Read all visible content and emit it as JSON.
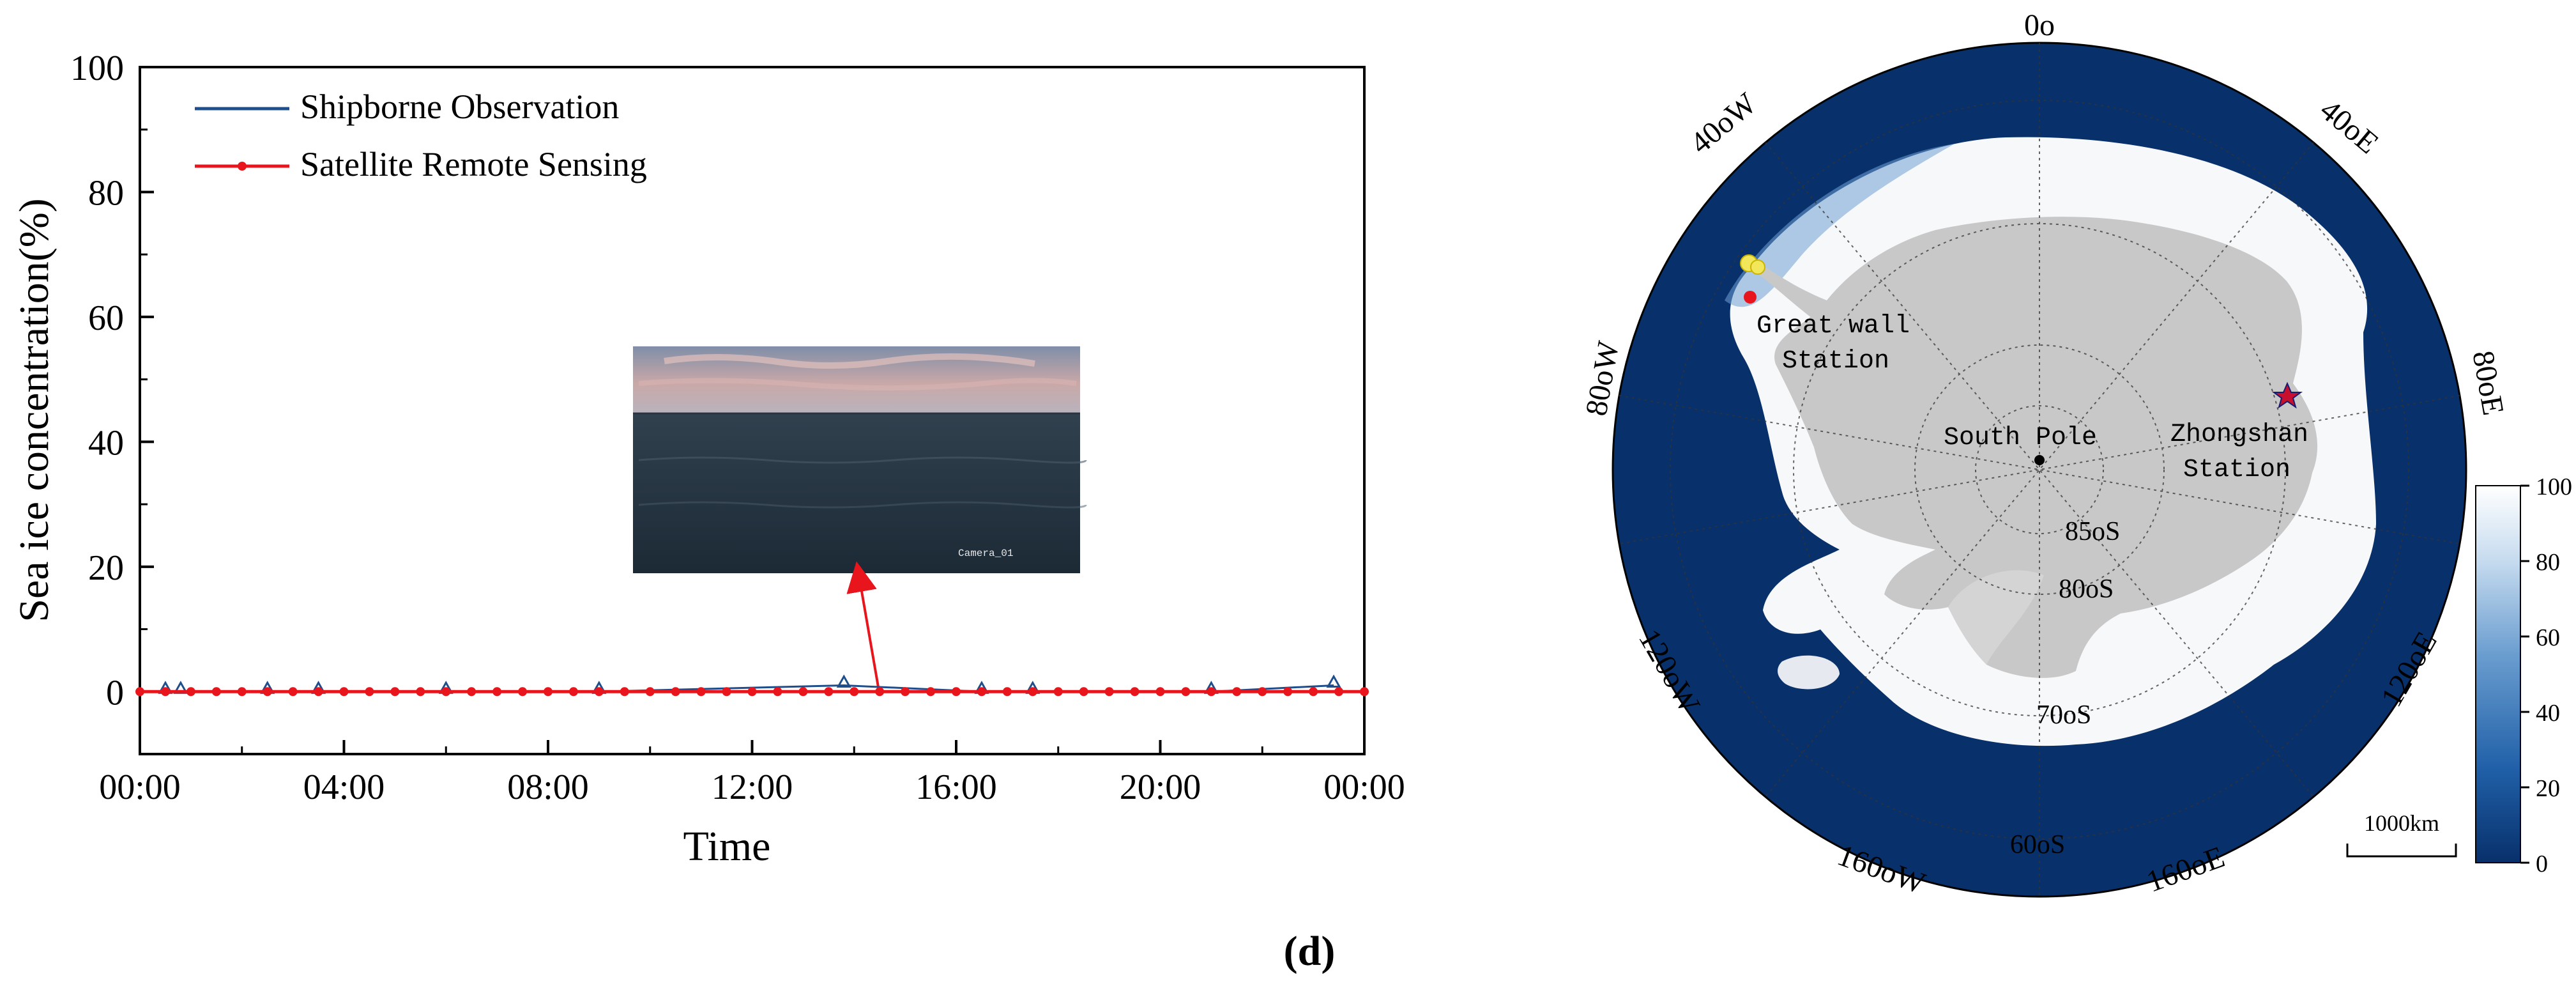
{
  "figure_label": "(d)",
  "chart_data": [
    {
      "type": "line",
      "xlabel": "Time",
      "ylabel": "Sea ice concentration(%)",
      "x_ticks": [
        "00:00",
        "04:00",
        "08:00",
        "12:00",
        "16:00",
        "20:00",
        "00:00"
      ],
      "y_ticks": [
        0,
        20,
        40,
        60,
        80,
        100
      ],
      "xlim_hours": [
        0,
        24
      ],
      "ylim": [
        -10,
        100
      ],
      "grid": false,
      "legend_position": "top-left",
      "series": [
        {
          "name": "Shipborne Observation",
          "color": "#1f4e8c",
          "marker": "triangle",
          "x_hours": [
            0.5,
            0.8,
            2.5,
            3.5,
            6.0,
            9.0,
            13.8,
            16.5,
            17.5,
            21.0,
            23.4
          ],
          "values": [
            0,
            0,
            0,
            0,
            0,
            0,
            1,
            0,
            0,
            0,
            1
          ]
        },
        {
          "name": "Satellite Remote Sensing",
          "color": "#e8161c",
          "marker": "dot",
          "x_hours": [
            0.0,
            0.5,
            1.0,
            1.5,
            2.0,
            2.5,
            3.0,
            3.5,
            4.0,
            4.5,
            5.0,
            5.5,
            6.0,
            6.5,
            7.0,
            7.5,
            8.0,
            8.5,
            9.0,
            9.5,
            10.0,
            10.5,
            11.0,
            11.5,
            12.0,
            12.5,
            13.0,
            13.5,
            14.0,
            14.5,
            15.0,
            15.5,
            16.0,
            16.5,
            17.0,
            17.5,
            18.0,
            18.5,
            19.0,
            19.5,
            20.0,
            20.5,
            21.0,
            21.5,
            22.0,
            22.5,
            23.0,
            23.5,
            24.0
          ],
          "values": [
            0,
            0,
            0,
            0,
            0,
            0,
            0,
            0,
            0,
            0,
            0,
            0,
            0,
            0,
            0,
            0,
            0,
            0,
            0,
            0,
            0,
            0,
            0,
            0,
            0,
            0,
            0,
            0,
            0,
            0,
            0,
            0,
            0,
            0,
            0,
            0,
            0,
            0,
            0,
            0,
            0,
            0,
            0,
            0,
            0,
            0,
            0,
            0,
            0
          ]
        }
      ],
      "inset": {
        "caption": "Camera_01",
        "points_to_hour": 15.0
      }
    },
    {
      "type": "heatmap",
      "projection": "south-polar-stereographic",
      "longitude_labels": [
        "0o",
        "40oE",
        "80oE",
        "120oE",
        "160oE",
        "60oS",
        "160oW",
        "120oW",
        "80oW",
        "40oW"
      ],
      "latitude_labels": [
        "85oS",
        "80oS",
        "70oS"
      ],
      "place_labels": {
        "south_pole": "South Pole",
        "zhongshan": [
          "Zhongshan",
          "Station"
        ],
        "great_wall": [
          "Great wall",
          "Station"
        ]
      },
      "colorbar": {
        "ticks": [
          0,
          20,
          40,
          60,
          80,
          100
        ],
        "range": [
          0,
          100
        ],
        "colors": [
          "#0a2a6a",
          "#ffffff"
        ]
      },
      "scale_bar": "1000km",
      "colors": {
        "ocean": "#08306b",
        "land": "#c8c8c8",
        "ice": "#ffffff"
      }
    }
  ]
}
